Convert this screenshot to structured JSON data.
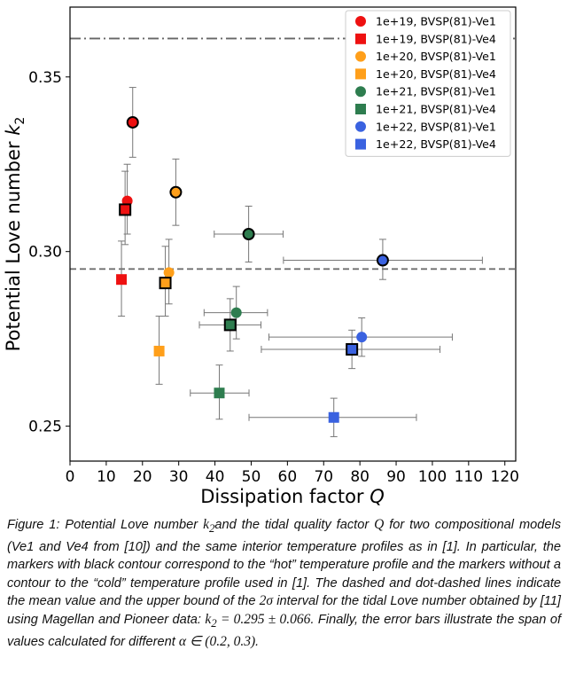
{
  "chart_data": {
    "type": "scatter",
    "xlabel": "Dissipation factor",
    "xlabel_var": "Q",
    "ylabel": "Potential Love number",
    "ylabel_var": "k",
    "ylabel_sub": "2",
    "xlim": [
      0,
      123
    ],
    "ylim": [
      0.24,
      0.37
    ],
    "xticks": [
      0,
      10,
      20,
      30,
      40,
      50,
      60,
      70,
      80,
      90,
      100,
      110,
      120
    ],
    "yticks": [
      0.25,
      0.3,
      0.35
    ],
    "ytick_labels": [
      "0.25",
      "0.30",
      "0.35"
    ],
    "grid": false,
    "legend_position": "top-right",
    "reference_lines": [
      {
        "style": "dashed",
        "y": 0.295,
        "color": "#666666"
      },
      {
        "style": "dashdot",
        "y": 0.361,
        "color": "#666666"
      }
    ],
    "series": [
      {
        "name": "1e+19, BVSP(81)-Ve1",
        "marker": "circle",
        "color": "#ee1111",
        "points": [
          {
            "x": 17.3,
            "y": 0.337,
            "yerr": [
              0.327,
              0.347
            ],
            "outlined": true
          },
          {
            "x": 15.8,
            "y": 0.3145,
            "yerr": [
              0.305,
              0.325
            ],
            "outlined": false
          }
        ]
      },
      {
        "name": "1e+19, BVSP(81)-Ve4",
        "marker": "square",
        "color": "#ee1111",
        "points": [
          {
            "x": 15.2,
            "y": 0.312,
            "yerr": [
              0.302,
              0.323
            ],
            "outlined": true
          },
          {
            "x": 14.2,
            "y": 0.292,
            "yerr": [
              0.2815,
              0.303
            ],
            "outlined": false
          }
        ]
      },
      {
        "name": "1e+20, BVSP(81)-Ve1",
        "marker": "circle",
        "color": "#ff9f1a",
        "points": [
          {
            "x": 29.2,
            "y": 0.317,
            "yerr": [
              0.3075,
              0.3265
            ],
            "outlined": true
          },
          {
            "x": 27.3,
            "y": 0.294,
            "yerr": [
              0.285,
              0.3035
            ],
            "outlined": false
          }
        ]
      },
      {
        "name": "1e+20, BVSP(81)-Ve4",
        "marker": "square",
        "color": "#ff9f1a",
        "points": [
          {
            "x": 26.3,
            "y": 0.291,
            "yerr": [
              0.2815,
              0.3015
            ],
            "outlined": true
          },
          {
            "x": 24.6,
            "y": 0.2715,
            "yerr": [
              0.262,
              0.2815
            ],
            "outlined": false
          }
        ]
      },
      {
        "name": "1e+21, BVSP(81)-Ve1",
        "marker": "circle",
        "color": "#2e7d4f",
        "points": [
          {
            "x": 49.3,
            "y": 0.305,
            "yerr": [
              0.297,
              0.313
            ],
            "xerr": [
              39.8,
              58.8
            ],
            "outlined": true
          },
          {
            "x": 45.9,
            "y": 0.2825,
            "yerr": [
              0.275,
              0.29
            ],
            "xerr": [
              37.0,
              54.5
            ],
            "outlined": false
          }
        ]
      },
      {
        "name": "1e+21, BVSP(81)-Ve4",
        "marker": "square",
        "color": "#2e7d4f",
        "points": [
          {
            "x": 44.2,
            "y": 0.279,
            "yerr": [
              0.2715,
              0.2865
            ],
            "xerr": [
              35.7,
              52.7
            ],
            "outlined": true
          },
          {
            "x": 41.2,
            "y": 0.2595,
            "yerr": [
              0.252,
              0.2675
            ],
            "xerr": [
              33.2,
              49.4
            ],
            "outlined": false
          }
        ]
      },
      {
        "name": "1e+22, BVSP(81)-Ve1",
        "marker": "circle",
        "color": "#3a62e0",
        "points": [
          {
            "x": 86.3,
            "y": 0.2975,
            "yerr": [
              0.292,
              0.3035
            ],
            "xerr": [
              58.9,
              113.8
            ],
            "outlined": true
          },
          {
            "x": 80.5,
            "y": 0.2755,
            "yerr": [
              0.27,
              0.281
            ],
            "xerr": [
              54.9,
              105.5
            ],
            "outlined": false
          }
        ]
      },
      {
        "name": "1e+22, BVSP(81)-Ve4",
        "marker": "square",
        "color": "#3a62e0",
        "points": [
          {
            "x": 77.8,
            "y": 0.272,
            "yerr": [
              0.2665,
              0.2775
            ],
            "xerr": [
              52.8,
              102.1
            ],
            "outlined": true
          },
          {
            "x": 72.8,
            "y": 0.2525,
            "yerr": [
              0.247,
              0.258
            ],
            "xerr": [
              49.4,
              95.6
            ],
            "outlined": false
          }
        ]
      }
    ]
  },
  "caption": {
    "p1": "Figure 1: Potential Love number ",
    "k2a": "k",
    "k2a_sub": "2",
    "p2": "and the tidal quality factor ",
    "q": "Q",
    "p3": " for two compositional models (Ve1 and Ve4 from [10]) and the same interior temperature profiles as in [1]. In particular, the markers with black contour correspond to the “hot” temperature profile and the markers without a contour to the “cold” temperature profile used in [1]. The dashed and dot-dashed lines indicate the mean value and the upper bound of the ",
    "two_sigma": "2σ",
    "p4": " interval for the tidal Love number obtained by [11] using Magellan and Pioneer data: ",
    "k2b": "k",
    "k2b_sub": "2",
    "k2_value": " = 0.295 ± 0.066",
    "p5": ". Finally, the error bars illustrate the span of values calculated for different ",
    "alpha_range": "α ∈ (0.2, 0.3)",
    "p6": "."
  }
}
